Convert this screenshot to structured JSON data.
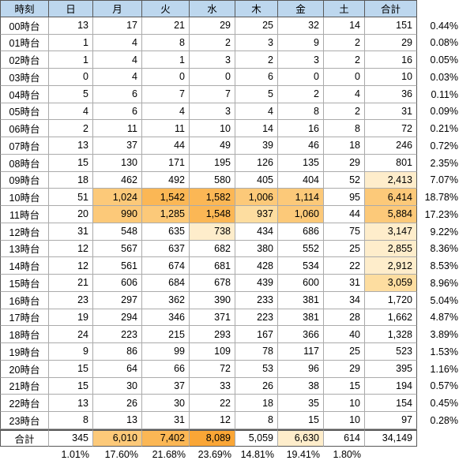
{
  "colors": {
    "header_bg": "#BDD7EE",
    "grid_line": "#ABABAB",
    "frame_line": "#595959",
    "heat_scale": [
      "#FFFFFF",
      "#FFF7E6",
      "#FEEDCB",
      "#FDDDA0",
      "#FCC979",
      "#FBB755",
      "#FAA636"
    ]
  },
  "table": {
    "corner_header": "時刻",
    "day_headers": [
      "日",
      "月",
      "火",
      "水",
      "木",
      "金",
      "土"
    ],
    "total_header": "合計",
    "rows": [
      {
        "label": "00時台",
        "values": [
          "13",
          "17",
          "21",
          "29",
          "25",
          "32",
          "14"
        ],
        "heat": [
          0,
          0,
          0,
          0,
          0,
          0,
          0
        ],
        "total": "151",
        "total_heat": 0,
        "pct": "0.44%"
      },
      {
        "label": "01時台",
        "values": [
          "1",
          "4",
          "8",
          "2",
          "3",
          "9",
          "2"
        ],
        "heat": [
          0,
          0,
          0,
          0,
          0,
          0,
          0
        ],
        "total": "29",
        "total_heat": 0,
        "pct": "0.08%"
      },
      {
        "label": "02時台",
        "values": [
          "1",
          "4",
          "1",
          "3",
          "2",
          "3",
          "2"
        ],
        "heat": [
          0,
          0,
          0,
          0,
          0,
          0,
          0
        ],
        "total": "16",
        "total_heat": 0,
        "pct": "0.05%"
      },
      {
        "label": "03時台",
        "values": [
          "0",
          "4",
          "0",
          "0",
          "6",
          "0",
          "0"
        ],
        "heat": [
          0,
          0,
          0,
          0,
          0,
          0,
          0
        ],
        "total": "10",
        "total_heat": 0,
        "pct": "0.03%"
      },
      {
        "label": "04時台",
        "values": [
          "5",
          "6",
          "7",
          "7",
          "5",
          "2",
          "4"
        ],
        "heat": [
          0,
          0,
          0,
          0,
          0,
          0,
          0
        ],
        "total": "36",
        "total_heat": 0,
        "pct": "0.11%"
      },
      {
        "label": "05時台",
        "values": [
          "4",
          "6",
          "4",
          "3",
          "4",
          "8",
          "2"
        ],
        "heat": [
          0,
          0,
          0,
          0,
          0,
          0,
          0
        ],
        "total": "31",
        "total_heat": 0,
        "pct": "0.09%"
      },
      {
        "label": "06時台",
        "values": [
          "2",
          "11",
          "11",
          "10",
          "14",
          "16",
          "8"
        ],
        "heat": [
          0,
          0,
          0,
          0,
          0,
          0,
          0
        ],
        "total": "72",
        "total_heat": 0,
        "pct": "0.21%"
      },
      {
        "label": "07時台",
        "values": [
          "13",
          "37",
          "44",
          "49",
          "39",
          "46",
          "18"
        ],
        "heat": [
          0,
          0,
          0,
          0,
          0,
          0,
          0
        ],
        "total": "246",
        "total_heat": 0,
        "pct": "0.72%"
      },
      {
        "label": "08時台",
        "values": [
          "15",
          "130",
          "171",
          "195",
          "126",
          "135",
          "29"
        ],
        "heat": [
          0,
          0,
          0,
          0,
          0,
          0,
          0
        ],
        "total": "801",
        "total_heat": 0,
        "pct": "2.35%"
      },
      {
        "label": "09時台",
        "values": [
          "18",
          "462",
          "492",
          "580",
          "405",
          "404",
          "52"
        ],
        "heat": [
          0,
          0,
          0,
          0,
          0,
          0,
          0
        ],
        "total": "2,413",
        "total_heat": 2,
        "pct": "7.07%"
      },
      {
        "label": "10時台",
        "values": [
          "51",
          "1,024",
          "1,542",
          "1,582",
          "1,006",
          "1,114",
          "95"
        ],
        "heat": [
          0,
          4,
          5,
          5,
          4,
          4,
          0
        ],
        "total": "6,414",
        "total_heat": 4,
        "pct": "18.78%"
      },
      {
        "label": "11時台",
        "values": [
          "20",
          "990",
          "1,285",
          "1,548",
          "937",
          "1,060",
          "44"
        ],
        "heat": [
          0,
          4,
          4,
          5,
          3,
          4,
          0
        ],
        "total": "5,884",
        "total_heat": 4,
        "pct": "17.23%"
      },
      {
        "label": "12時台",
        "values": [
          "31",
          "548",
          "635",
          "738",
          "434",
          "686",
          "75"
        ],
        "heat": [
          0,
          0,
          0,
          2,
          0,
          0,
          0
        ],
        "total": "3,147",
        "total_heat": 2,
        "pct": "9.22%"
      },
      {
        "label": "13時台",
        "values": [
          "12",
          "567",
          "637",
          "682",
          "380",
          "552",
          "25"
        ],
        "heat": [
          0,
          0,
          0,
          0,
          0,
          0,
          0
        ],
        "total": "2,855",
        "total_heat": 2,
        "pct": "8.36%"
      },
      {
        "label": "14時台",
        "values": [
          "12",
          "561",
          "674",
          "681",
          "428",
          "534",
          "22"
        ],
        "heat": [
          0,
          0,
          0,
          0,
          0,
          0,
          0
        ],
        "total": "2,912",
        "total_heat": 2,
        "pct": "8.53%"
      },
      {
        "label": "15時台",
        "values": [
          "21",
          "606",
          "684",
          "678",
          "439",
          "600",
          "31"
        ],
        "heat": [
          0,
          0,
          0,
          0,
          0,
          0,
          0
        ],
        "total": "3,059",
        "total_heat": 3,
        "pct": "8.96%"
      },
      {
        "label": "16時台",
        "values": [
          "23",
          "297",
          "362",
          "390",
          "233",
          "381",
          "34"
        ],
        "heat": [
          0,
          0,
          0,
          0,
          0,
          0,
          0
        ],
        "total": "1,720",
        "total_heat": 0,
        "pct": "5.04%"
      },
      {
        "label": "17時台",
        "values": [
          "19",
          "294",
          "346",
          "371",
          "223",
          "381",
          "28"
        ],
        "heat": [
          0,
          0,
          0,
          0,
          0,
          0,
          0
        ],
        "total": "1,662",
        "total_heat": 0,
        "pct": "4.87%"
      },
      {
        "label": "18時台",
        "values": [
          "24",
          "223",
          "215",
          "293",
          "167",
          "366",
          "40"
        ],
        "heat": [
          0,
          0,
          0,
          0,
          0,
          0,
          0
        ],
        "total": "1,328",
        "total_heat": 0,
        "pct": "3.89%"
      },
      {
        "label": "19時台",
        "values": [
          "9",
          "86",
          "99",
          "109",
          "78",
          "117",
          "25"
        ],
        "heat": [
          0,
          0,
          0,
          0,
          0,
          0,
          0
        ],
        "total": "523",
        "total_heat": 0,
        "pct": "1.53%"
      },
      {
        "label": "20時台",
        "values": [
          "15",
          "64",
          "66",
          "72",
          "53",
          "96",
          "29"
        ],
        "heat": [
          0,
          0,
          0,
          0,
          0,
          0,
          0
        ],
        "total": "395",
        "total_heat": 0,
        "pct": "1.16%"
      },
      {
        "label": "21時台",
        "values": [
          "15",
          "30",
          "37",
          "33",
          "26",
          "38",
          "15"
        ],
        "heat": [
          0,
          0,
          0,
          0,
          0,
          0,
          0
        ],
        "total": "194",
        "total_heat": 0,
        "pct": "0.57%"
      },
      {
        "label": "22時台",
        "values": [
          "13",
          "26",
          "30",
          "22",
          "18",
          "35",
          "10"
        ],
        "heat": [
          0,
          0,
          0,
          0,
          0,
          0,
          0
        ],
        "total": "154",
        "total_heat": 0,
        "pct": "0.45%"
      },
      {
        "label": "23時台",
        "values": [
          "8",
          "13",
          "31",
          "12",
          "8",
          "15",
          "10"
        ],
        "heat": [
          0,
          0,
          0,
          0,
          0,
          0,
          0
        ],
        "total": "97",
        "total_heat": 0,
        "pct": "0.28%"
      }
    ],
    "footer": {
      "label": "合計",
      "values": [
        "345",
        "6,010",
        "7,402",
        "8,089",
        "5,059",
        "6,630",
        "614"
      ],
      "heat": [
        0,
        4,
        5,
        6,
        0,
        2,
        0
      ],
      "grand_total": "34,149",
      "pcts": [
        "1.01%",
        "17.60%",
        "21.68%",
        "23.69%",
        "14.81%",
        "19.41%",
        "1.80%"
      ]
    }
  }
}
